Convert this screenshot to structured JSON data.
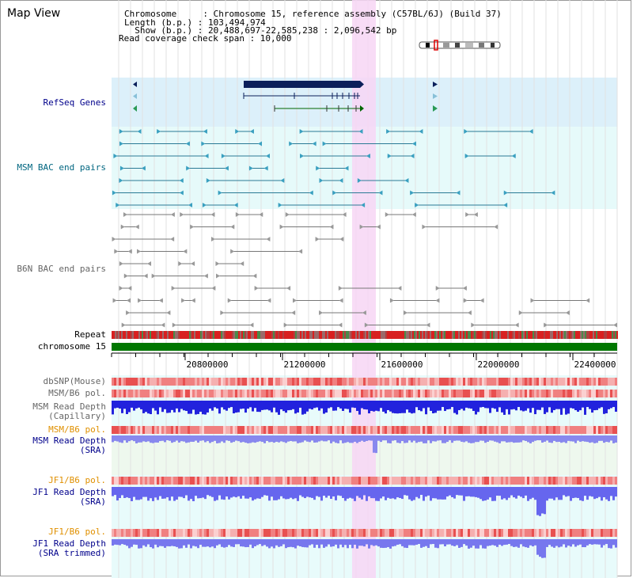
{
  "header": {
    "title": "Map View",
    "info_lines": [
      "Chromosome     : Chromosome 15, reference assembly (C57BL/6J) (Build 37)",
      "Length (b.p.) : 103,494,974",
      "  Show (b.p.) : 20,488,697-22,585,238 : 2,096,542 bp",
      "Read coverage check span : 10,000"
    ]
  },
  "tracks": {
    "refseq": "RefSeq Genes",
    "msm_bac": "MSM BAC end pairs",
    "b6n_bac": "B6N BAC end pairs",
    "repeat": "Repeat",
    "chromosome": "chromosome 15",
    "dbsnp": "dbSNP(Mouse)",
    "msm_pol": "MSM/B6 pol.",
    "msm_depth_cap_1": "MSM Read Depth",
    "msm_depth_cap_2": "(Capillary)",
    "msm_pol_2": "MSM/B6 pol.",
    "msm_depth_sra_1": "MSM Read Depth",
    "msm_depth_sra_2": "(SRA)",
    "jf1_pol": "JF1/B6 pol.",
    "jf1_depth_sra_1": "JF1 Read Depth",
    "jf1_depth_sra_2": "(SRA)",
    "jf1_pol_2": "JF1/B6 pol.",
    "jf1_depth_trim_1": "JF1 Read Depth",
    "jf1_depth_trim_2": "(SRA trimmed)"
  },
  "axis": {
    "ticks": [
      "20800000",
      "21200000",
      "21600000",
      "22000000",
      "22400000"
    ]
  },
  "colors": {
    "highlight": "#f7d6f4",
    "refseq_bg": "#dcf0fa",
    "msm_bg": "#e6fafa",
    "chromosome": "#007700",
    "repeat": "#cc2222",
    "depth_blue": "#2222dd",
    "depth_light": "#8888ee"
  }
}
